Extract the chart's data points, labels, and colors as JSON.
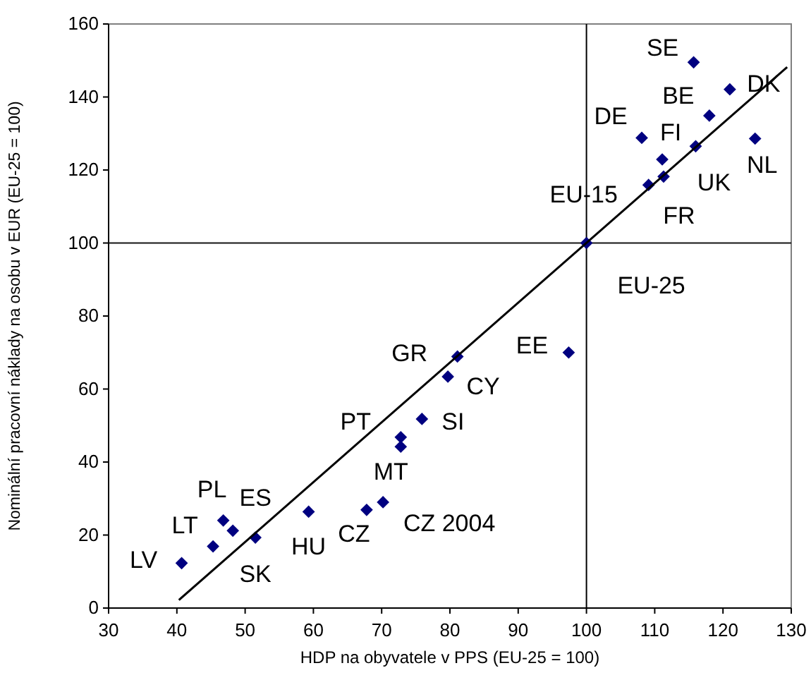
{
  "chart_data": {
    "type": "scatter",
    "xlabel": "HDP na obyvatele v PPS (EU-25 = 100)",
    "ylabel": "Nominální pracovní náklady na osobu v EUR (EU-25 = 100)",
    "xlim": [
      30,
      130
    ],
    "xticks": [
      30,
      40,
      50,
      60,
      70,
      80,
      90,
      100,
      110,
      120,
      130
    ],
    "ylim": [
      0,
      160
    ],
    "yticks": [
      0,
      20,
      40,
      60,
      80,
      100,
      120,
      140,
      160
    ],
    "grid": false,
    "marker": "diamond",
    "series": [
      {
        "color": "#000080",
        "x": [
          40.7,
          45.3,
          46.8,
          48.2,
          51.5,
          59.3,
          67.8,
          70.2,
          72.8,
          72.8,
          75.9,
          79.7,
          81.1,
          97.4,
          100,
          109.1,
          111.3,
          111.1,
          108.1,
          116.0,
          118.0,
          115.7,
          121.0,
          124.7
        ],
        "values": [
          12.3,
          16.9,
          24.0,
          21.2,
          19.3,
          26.4,
          26.9,
          29.0,
          44.2,
          46.8,
          51.8,
          63.4,
          68.9,
          70.0,
          100,
          115.9,
          118.2,
          122.9,
          128.8,
          126.5,
          134.9,
          149.5,
          142.1,
          128.6
        ]
      },
      {
        "type": "line",
        "color": "#000000",
        "line_style": "solid",
        "marker": "none",
        "x": [
          40.3,
          129.4
        ],
        "values": [
          2.2,
          148.2
        ]
      }
    ],
    "ref_lines": [
      {
        "axis": "x",
        "value": 100,
        "color": "#000000"
      },
      {
        "axis": "y",
        "value": 100,
        "color": "#141414"
      }
    ],
    "annotations": [
      {
        "text": "SE",
        "x": 115.7,
        "y": 149.5
      },
      {
        "text": "BE",
        "x": 118.0,
        "y": 134.9
      },
      {
        "text": "DK",
        "x": 121.0,
        "y": 142.1
      },
      {
        "text": "DE",
        "x": 108.1,
        "y": 128.8
      },
      {
        "text": "FI",
        "x": 111.1,
        "y": 122.9
      },
      {
        "text": "NL",
        "x": 124.7,
        "y": 128.6
      },
      {
        "text": "UK",
        "x": 116.0,
        "y": 126.5
      },
      {
        "text": "EU-15",
        "x": 109.1,
        "y": 115.9
      },
      {
        "text": "FR",
        "x": 111.3,
        "y": 118.2
      },
      {
        "text": "EU-25",
        "x": 100,
        "y": 100
      },
      {
        "text": "EE",
        "x": 97.4,
        "y": 70.0
      },
      {
        "text": "GR",
        "x": 81.1,
        "y": 68.9
      },
      {
        "text": "CY",
        "x": 79.7,
        "y": 63.4
      },
      {
        "text": "PT",
        "x": 72.8,
        "y": 46.8
      },
      {
        "text": "SI",
        "x": 75.9,
        "y": 51.8
      },
      {
        "text": "MT",
        "x": 72.8,
        "y": 44.2
      },
      {
        "text": "CZ 2004",
        "x": 70.2,
        "y": 29.0
      },
      {
        "text": "CZ",
        "x": 67.8,
        "y": 26.9
      },
      {
        "text": "HU",
        "x": 59.3,
        "y": 26.4
      },
      {
        "text": "SK",
        "x": 51.5,
        "y": 19.3
      },
      {
        "text": "LV",
        "x": 40.7,
        "y": 12.3
      },
      {
        "text": "LT",
        "x": 45.3,
        "y": 16.9
      },
      {
        "text": "PL",
        "x": 46.8,
        "y": 24.0
      },
      {
        "text": "ES",
        "x": 48.2,
        "y": 21.2
      }
    ]
  }
}
